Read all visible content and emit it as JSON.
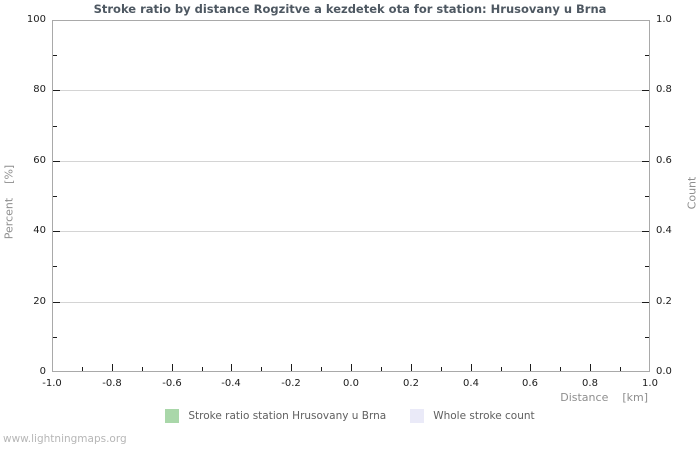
{
  "watermark": "www.lightningmaps.org",
  "chart_data": {
    "type": "area",
    "title": "Stroke ratio by distance Rogzitve a kezdetek ota for station: Hrusovany u Brna",
    "xlabel": "Distance    [km]",
    "ylabel_left": "Percent    [%]",
    "ylabel_right": "Count",
    "xlim": [
      -1.0,
      1.0
    ],
    "ylim_left": [
      0,
      100
    ],
    "ylim_right": [
      0.0,
      1.0
    ],
    "x_tick_labels": [
      "-1.0",
      "-0.8",
      "-0.6",
      "-0.4",
      "-0.2",
      "0.0",
      "0.2",
      "0.4",
      "0.6",
      "0.8",
      "1.0"
    ],
    "y_tick_labels_left": [
      "0",
      "20",
      "40",
      "60",
      "80",
      "100"
    ],
    "y_tick_labels_right": [
      "0.0",
      "0.2",
      "0.4",
      "0.6",
      "0.8",
      "1.0"
    ],
    "grid": "horizontal-major-only",
    "minor_ticks": "midpoints-on-all-axes",
    "legend_position": "bottom-center",
    "series": [
      {
        "name": "Stroke ratio station Hrusovany u Brna",
        "color": "#a9d7a9",
        "values": []
      },
      {
        "name": "Whole stroke count",
        "color": "#eaeaf8",
        "values": []
      }
    ],
    "colors": {
      "title": "#4e5862",
      "tick": "#1c1c1c",
      "tick_label": "#1c1c1c",
      "axis_label": "#8e8e8e",
      "legend_text": "#5f5f5f",
      "plot_border": "#a9a9a9",
      "gridline": "#d4d4d4",
      "watermark": "#b6b6b6",
      "background": "#ffffff"
    }
  }
}
